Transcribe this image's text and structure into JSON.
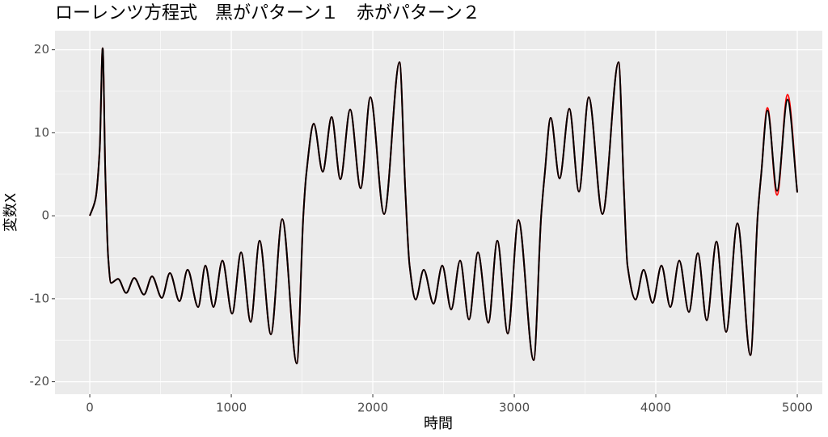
{
  "chart_data": {
    "type": "line",
    "title": "ローレンツ方程式　黒がパターン１　赤がパターン２",
    "x_label": "時間",
    "y_label": "変数X",
    "x": [
      0,
      40,
      70,
      91,
      110,
      130,
      150,
      200,
      257,
      314,
      383,
      440,
      509,
      566,
      634,
      691,
      766,
      817,
      874,
      937,
      1006,
      1069,
      1137,
      1200,
      1280,
      1360,
      1463,
      1509,
      1530,
      1583,
      1646,
      1709,
      1771,
      1840,
      1914,
      1983,
      2080,
      2189,
      2230,
      2260,
      2303,
      2360,
      2429,
      2491,
      2554,
      2617,
      2680,
      2743,
      2817,
      2880,
      2954,
      3029,
      3137,
      3190,
      3215,
      3257,
      3320,
      3389,
      3457,
      3526,
      3623,
      3737,
      3775,
      3800,
      3857,
      3914,
      3977,
      4040,
      4103,
      4166,
      4234,
      4297,
      4360,
      4429,
      4497,
      4577,
      4669,
      4720,
      4745,
      4789,
      4857,
      4931,
      5000
    ],
    "series": [
      {
        "name": "パターン２",
        "color": "#ff0000",
        "values": [
          0,
          2,
          8,
          20.2,
          5,
          -5,
          -8.1,
          -7.6,
          -9.3,
          -7.5,
          -9.5,
          -7.3,
          -9.9,
          -6.9,
          -10.3,
          -6.5,
          -11,
          -6,
          -11,
          -5.4,
          -11.8,
          -4.4,
          -12.8,
          -3,
          -14.3,
          -0.4,
          -17.8,
          0,
          5,
          11.1,
          5.3,
          11.9,
          4.4,
          12.8,
          3.3,
          14.3,
          0.2,
          18.5,
          3,
          -6,
          -10.1,
          -6.5,
          -10.6,
          -6,
          -11.3,
          -5.4,
          -12.5,
          -4.4,
          -12.9,
          -3,
          -14.2,
          -0.5,
          -17.4,
          0,
          5,
          11.8,
          4.5,
          12.9,
          2.9,
          14.3,
          0.2,
          18.5,
          3,
          -6,
          -10.1,
          -6.5,
          -10.5,
          -6,
          -11,
          -5.4,
          -11.6,
          -4.5,
          -12.6,
          -3.1,
          -14,
          -0.9,
          -16.8,
          0,
          5,
          13,
          2.5,
          14.6,
          2.8
        ]
      },
      {
        "name": "パターン１",
        "color": "#000000",
        "values": [
          0,
          2,
          8,
          20.2,
          5,
          -5,
          -8.1,
          -7.6,
          -9.3,
          -7.5,
          -9.5,
          -7.3,
          -9.9,
          -6.9,
          -10.3,
          -6.5,
          -11,
          -6,
          -11,
          -5.4,
          -11.8,
          -4.4,
          -12.8,
          -3,
          -14.3,
          -0.4,
          -17.8,
          0,
          5,
          11.1,
          5.3,
          11.9,
          4.4,
          12.8,
          3.3,
          14.3,
          0.2,
          18.5,
          3,
          -6,
          -10.1,
          -6.5,
          -10.6,
          -6,
          -11.3,
          -5.4,
          -12.5,
          -4.4,
          -12.9,
          -3,
          -14.2,
          -0.5,
          -17.4,
          0,
          5,
          11.8,
          4.5,
          12.9,
          2.9,
          14.3,
          0.2,
          18.5,
          3,
          -6,
          -10.1,
          -6.5,
          -10.5,
          -6,
          -11,
          -5.4,
          -11.6,
          -4.5,
          -12.6,
          -3.1,
          -14,
          -0.9,
          -16.8,
          0,
          5,
          12.7,
          3,
          14,
          2.8
        ]
      }
    ],
    "xlim": [
      -246,
      5177
    ],
    "ylim": [
      -21.5,
      22.3
    ],
    "xticks": [
      0,
      1000,
      2000,
      3000,
      4000,
      5000
    ],
    "yticks": [
      -20,
      -10,
      0,
      10,
      20
    ],
    "grid": true,
    "panel_color": "#ebebeb"
  }
}
